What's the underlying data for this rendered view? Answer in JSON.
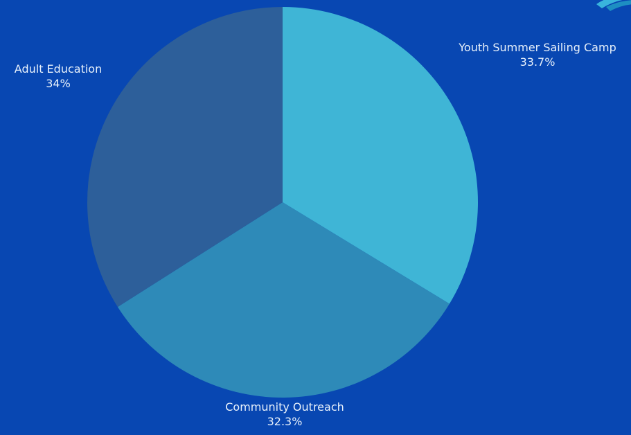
{
  "chart_data": {
    "type": "pie",
    "categories": [
      "Youth Summer Sailing Camp",
      "Community Outreach",
      "Adult Education"
    ],
    "values": [
      33.7,
      32.3,
      34
    ],
    "value_labels": [
      "33.7%",
      "32.3%",
      "34%"
    ],
    "colors": [
      "#3fb5d6",
      "#2e8ab8",
      "#2d5f9a"
    ],
    "start_angle_deg": 0,
    "direction": "clockwise",
    "legend": "none"
  },
  "colors": {
    "background": "#0847b2",
    "label_text": "#e8f1fb",
    "corner_accent": "#39b4dc"
  }
}
